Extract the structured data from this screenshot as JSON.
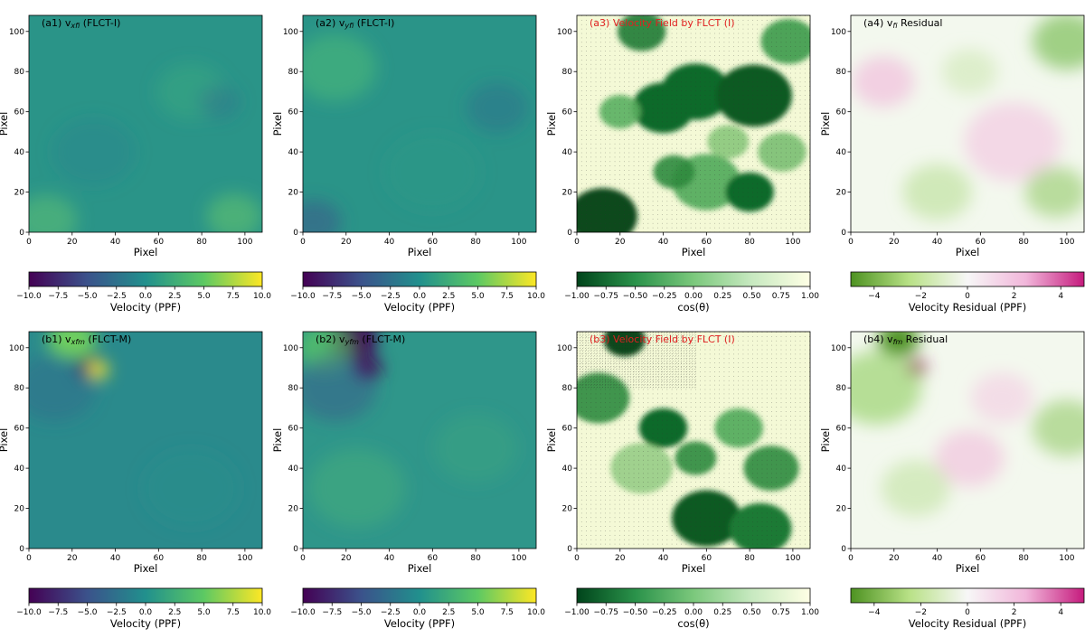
{
  "chart_data": [
    {
      "id": "a1",
      "type": "heatmap",
      "title_prefix": "(a1) v",
      "title_sub": "xfi",
      "title_suffix": " (FLCT-I)",
      "title_color": "#000000",
      "xlabel": "Pixel",
      "ylabel": "Pixel",
      "xlim": [
        0,
        108
      ],
      "ylim": [
        0,
        108
      ],
      "xticks": [
        0,
        20,
        40,
        60,
        80,
        100
      ],
      "yticks": [
        0,
        20,
        40,
        60,
        80,
        100
      ],
      "colormap": "viridis",
      "base_color": "#2a9488",
      "features": [
        {
          "x": 8,
          "y": 6,
          "r": 9,
          "color": "#5fc173",
          "opacity": 0.55
        },
        {
          "x": 95,
          "y": 8,
          "r": 8,
          "color": "#6ccc6a",
          "opacity": 0.5
        },
        {
          "x": 75,
          "y": 70,
          "r": 10,
          "color": "#3fb07c",
          "opacity": 0.4
        },
        {
          "x": 88,
          "y": 65,
          "r": 6,
          "color": "#2f6b8e",
          "opacity": 0.4
        },
        {
          "x": 30,
          "y": 40,
          "r": 12,
          "color": "#2c7d8e",
          "opacity": 0.35
        }
      ],
      "colorbar": {
        "ticks": [
          "−10.0",
          "−7.5",
          "−5.0",
          "−2.5",
          "0.0",
          "2.5",
          "5.0",
          "7.5",
          "10.0"
        ],
        "label": "Velocity (PPF)",
        "range": [
          -10,
          10
        ],
        "colors": [
          "#440154",
          "#3b528b",
          "#21908d",
          "#5dc963",
          "#fde725"
        ]
      }
    },
    {
      "id": "a2",
      "type": "heatmap",
      "title_prefix": "(a2) v",
      "title_sub": "yfi",
      "title_suffix": " (FLCT-I)",
      "title_color": "#000000",
      "xlabel": "Pixel",
      "ylabel": "Pixel",
      "xlim": [
        0,
        108
      ],
      "ylim": [
        0,
        108
      ],
      "xticks": [
        0,
        20,
        40,
        60,
        80,
        100
      ],
      "yticks": [
        0,
        20,
        40,
        60,
        80,
        100
      ],
      "colormap": "viridis",
      "base_color": "#2a9488",
      "features": [
        {
          "x": 5,
          "y": 5,
          "r": 8,
          "color": "#3b528b",
          "opacity": 0.5
        },
        {
          "x": 15,
          "y": 82,
          "r": 12,
          "color": "#4fbf75",
          "opacity": 0.5
        },
        {
          "x": 90,
          "y": 62,
          "r": 9,
          "color": "#2f6b8e",
          "opacity": 0.45
        },
        {
          "x": 60,
          "y": 30,
          "r": 14,
          "color": "#2f9a84",
          "opacity": 0.3
        }
      ],
      "colorbar": {
        "ticks": [
          "−10.0",
          "−7.5",
          "−5.0",
          "−2.5",
          "0.0",
          "2.5",
          "5.0",
          "7.5",
          "10.0"
        ],
        "label": "Velocity (PPF)",
        "range": [
          -10,
          10
        ],
        "colors": [
          "#440154",
          "#3b528b",
          "#21908d",
          "#5dc963",
          "#fde725"
        ]
      }
    },
    {
      "id": "a3",
      "type": "heatmap",
      "title_prefix": "(a3) Velocity Field by FLCT (I)",
      "title_sub": "",
      "title_suffix": "",
      "title_color": "#e02020",
      "xlabel": "Pixel",
      "ylabel": "Pixel",
      "xlim": [
        0,
        108
      ],
      "ylim": [
        0,
        108
      ],
      "xticks": [
        0,
        20,
        40,
        60,
        80,
        100
      ],
      "yticks": [
        0,
        20,
        40,
        60,
        80,
        100
      ],
      "colormap": "Greens_r",
      "base_color": "#f4f9d6",
      "quiver": true,
      "features": [
        {
          "x": 12,
          "y": 8,
          "r": 10,
          "color": "#0a4a1c",
          "opacity": 1
        },
        {
          "x": 40,
          "y": 62,
          "r": 9,
          "color": "#0f6b2a",
          "opacity": 1
        },
        {
          "x": 55,
          "y": 70,
          "r": 10,
          "color": "#0f6b2a",
          "opacity": 1
        },
        {
          "x": 82,
          "y": 68,
          "r": 11,
          "color": "#0a5a22",
          "opacity": 1
        },
        {
          "x": 98,
          "y": 95,
          "r": 8,
          "color": "#3c9a4a",
          "opacity": 0.9
        },
        {
          "x": 20,
          "y": 60,
          "r": 6,
          "color": "#5aaf5f",
          "opacity": 0.9
        },
        {
          "x": 60,
          "y": 25,
          "r": 10,
          "color": "#4fa85a",
          "opacity": 0.9
        },
        {
          "x": 80,
          "y": 20,
          "r": 7,
          "color": "#0f6b2a",
          "opacity": 1
        },
        {
          "x": 45,
          "y": 30,
          "r": 6,
          "color": "#2e8b3e",
          "opacity": 0.9
        },
        {
          "x": 30,
          "y": 100,
          "r": 7,
          "color": "#1e7a34",
          "opacity": 0.9
        },
        {
          "x": 70,
          "y": 45,
          "r": 6,
          "color": "#7cc070",
          "opacity": 0.8
        },
        {
          "x": 95,
          "y": 40,
          "r": 7,
          "color": "#6ab866",
          "opacity": 0.8
        }
      ],
      "colorbar": {
        "ticks": [
          "−1.00",
          "−0.75",
          "−0.50",
          "−0.25",
          "0.00",
          "0.25",
          "0.50",
          "0.75",
          "1.00"
        ],
        "label": "cos(θ)",
        "range": [
          -1,
          1
        ],
        "colors": [
          "#00441b",
          "#2a924a",
          "#7bc87c",
          "#c7e9c0",
          "#ffffe5"
        ]
      }
    },
    {
      "id": "a4",
      "type": "heatmap",
      "title_prefix": "(a4) v",
      "title_sub": "fi",
      "title_suffix": " Residual",
      "title_color": "#000000",
      "xlabel": "Pixel",
      "ylabel": "Pixel",
      "xlim": [
        0,
        108
      ],
      "ylim": [
        0,
        108
      ],
      "xticks": [
        0,
        20,
        40,
        60,
        80,
        100
      ],
      "yticks": [
        0,
        20,
        40,
        60,
        80,
        100
      ],
      "colormap": "PiYG_r",
      "base_color": "#f3f8ee",
      "features": [
        {
          "x": 100,
          "y": 95,
          "r": 10,
          "color": "#8cc56a",
          "opacity": 0.8
        },
        {
          "x": 15,
          "y": 75,
          "r": 9,
          "color": "#f1c6df",
          "opacity": 0.8
        },
        {
          "x": 75,
          "y": 45,
          "r": 14,
          "color": "#f3cbe2",
          "opacity": 0.7
        },
        {
          "x": 40,
          "y": 20,
          "r": 10,
          "color": "#c2e3a2",
          "opacity": 0.7
        },
        {
          "x": 95,
          "y": 20,
          "r": 9,
          "color": "#9fd07a",
          "opacity": 0.7
        },
        {
          "x": 55,
          "y": 80,
          "r": 8,
          "color": "#cfe8b4",
          "opacity": 0.6
        }
      ],
      "colorbar": {
        "ticks": [
          "−4",
          "−2",
          "0",
          "2",
          "4"
        ],
        "tick_values": [
          -4,
          -2,
          0,
          2,
          4
        ],
        "label": "Velocity Residual (PPF)",
        "range": [
          -5,
          5
        ],
        "colors": [
          "#4d9221",
          "#b8e186",
          "#f7f7f7",
          "#f1b6da",
          "#c51b7d"
        ]
      }
    },
    {
      "id": "b1",
      "type": "heatmap",
      "title_prefix": "(b1) v",
      "title_sub": "xfm",
      "title_suffix": " (FLCT-M)",
      "title_color": "#000000",
      "xlabel": "Pixel",
      "ylabel": "Pixel",
      "xlim": [
        0,
        108
      ],
      "ylim": [
        0,
        108
      ],
      "xticks": [
        0,
        20,
        40,
        60,
        80,
        100
      ],
      "yticks": [
        0,
        20,
        40,
        60,
        80,
        100
      ],
      "colormap": "viridis",
      "base_color": "#2a8a8c",
      "features": [
        {
          "x": 20,
          "y": 104,
          "r": 7,
          "color": "#6fcf5f",
          "opacity": 1
        },
        {
          "x": 28,
          "y": 90,
          "r": 4,
          "color": "#440154",
          "opacity": 1
        },
        {
          "x": 32,
          "y": 89,
          "r": 3,
          "color": "#fde725",
          "opacity": 1
        },
        {
          "x": 12,
          "y": 80,
          "r": 12,
          "color": "#2f6b8e",
          "opacity": 0.5
        },
        {
          "x": 75,
          "y": 30,
          "r": 14,
          "color": "#2b8e8a",
          "opacity": 0.4
        }
      ],
      "colorbar": {
        "ticks": [
          "−10.0",
          "−7.5",
          "−5.0",
          "−2.5",
          "0.0",
          "2.5",
          "5.0",
          "7.5",
          "10.0"
        ],
        "label": "Velocity (PPF)",
        "range": [
          -10,
          10
        ],
        "colors": [
          "#440154",
          "#3b528b",
          "#21908d",
          "#5dc963",
          "#fde725"
        ]
      }
    },
    {
      "id": "b2",
      "type": "heatmap",
      "title_prefix": "(b2) v",
      "title_sub": "yfm",
      "title_suffix": " (FLCT-M)",
      "title_color": "#000000",
      "xlabel": "Pixel",
      "ylabel": "Pixel",
      "xlim": [
        0,
        108
      ],
      "ylim": [
        0,
        108
      ],
      "xticks": [
        0,
        20,
        40,
        60,
        80,
        100
      ],
      "yticks": [
        0,
        20,
        40,
        60,
        80,
        100
      ],
      "colormap": "viridis",
      "base_color": "#2f968a",
      "features": [
        {
          "x": 23,
          "y": 104,
          "r": 7,
          "color": "#440154",
          "opacity": 1
        },
        {
          "x": 30,
          "y": 90,
          "r": 4,
          "color": "#440154",
          "opacity": 1
        },
        {
          "x": 10,
          "y": 100,
          "r": 8,
          "color": "#5dc963",
          "opacity": 0.7
        },
        {
          "x": 15,
          "y": 80,
          "r": 12,
          "color": "#3b528b",
          "opacity": 0.45
        },
        {
          "x": 25,
          "y": 30,
          "r": 14,
          "color": "#46b07a",
          "opacity": 0.5
        },
        {
          "x": 80,
          "y": 50,
          "r": 12,
          "color": "#3fa87e",
          "opacity": 0.4
        }
      ],
      "colorbar": {
        "ticks": [
          "−10.0",
          "−7.5",
          "−5.0",
          "−2.5",
          "0.0",
          "2.5",
          "5.0",
          "7.5",
          "10.0"
        ],
        "label": "Velocity (PPF)",
        "range": [
          -10,
          10
        ],
        "colors": [
          "#440154",
          "#3b528b",
          "#21908d",
          "#5dc963",
          "#fde725"
        ]
      }
    },
    {
      "id": "b3",
      "type": "heatmap",
      "title_prefix": "(b3) Velocity Field by FLCT (I)",
      "title_sub": "",
      "title_suffix": "",
      "title_color": "#e02020",
      "xlabel": "Pixel",
      "ylabel": "Pixel",
      "xlim": [
        0,
        108
      ],
      "ylim": [
        0,
        108
      ],
      "xticks": [
        0,
        20,
        40,
        60,
        80,
        100
      ],
      "yticks": [
        0,
        20,
        40,
        60,
        80,
        100
      ],
      "colormap": "Greens_r",
      "base_color": "#f4f9d6",
      "quiver": true,
      "dense_region": {
        "x": 0,
        "y": 80,
        "w": 55,
        "h": 28
      },
      "features": [
        {
          "x": 22,
          "y": 104,
          "r": 6,
          "color": "#0a4a1c",
          "opacity": 1
        },
        {
          "x": 10,
          "y": 75,
          "r": 9,
          "color": "#2e8b3e",
          "opacity": 0.9
        },
        {
          "x": 40,
          "y": 60,
          "r": 7,
          "color": "#0f6b2a",
          "opacity": 1
        },
        {
          "x": 60,
          "y": 15,
          "r": 10,
          "color": "#0a5a22",
          "opacity": 1
        },
        {
          "x": 85,
          "y": 10,
          "r": 9,
          "color": "#1e7a34",
          "opacity": 1
        },
        {
          "x": 90,
          "y": 40,
          "r": 8,
          "color": "#2e8b3e",
          "opacity": 0.9
        },
        {
          "x": 75,
          "y": 60,
          "r": 7,
          "color": "#4fa85a",
          "opacity": 0.9
        },
        {
          "x": 30,
          "y": 40,
          "r": 9,
          "color": "#7cc070",
          "opacity": 0.7
        },
        {
          "x": 55,
          "y": 45,
          "r": 6,
          "color": "#2e8b3e",
          "opacity": 0.9
        }
      ],
      "colorbar": {
        "ticks": [
          "−1.00",
          "−0.75",
          "−0.50",
          "−0.25",
          "0.00",
          "0.25",
          "0.50",
          "0.75",
          "1.00"
        ],
        "label": "cos(θ)",
        "range": [
          -1,
          1
        ],
        "colors": [
          "#00441b",
          "#2a924a",
          "#7bc87c",
          "#c7e9c0",
          "#ffffe5"
        ]
      }
    },
    {
      "id": "b4",
      "type": "heatmap",
      "title_prefix": "(b4) v",
      "title_sub": "fm",
      "title_suffix": " Residual",
      "title_color": "#000000",
      "xlabel": "Pixel",
      "ylabel": "Pixel",
      "xlim": [
        0,
        108
      ],
      "ylim": [
        0,
        108
      ],
      "xticks": [
        0,
        20,
        40,
        60,
        80,
        100
      ],
      "yticks": [
        0,
        20,
        40,
        60,
        80,
        100
      ],
      "colormap": "PiYG_r",
      "base_color": "#f3f8ee",
      "features": [
        {
          "x": 22,
          "y": 104,
          "r": 6,
          "color": "#4d9221",
          "opacity": 1
        },
        {
          "x": 30,
          "y": 90,
          "r": 3,
          "color": "#8e0152",
          "opacity": 1
        },
        {
          "x": 12,
          "y": 80,
          "r": 13,
          "color": "#a6d87f",
          "opacity": 0.8
        },
        {
          "x": 55,
          "y": 45,
          "r": 10,
          "color": "#f2c4de",
          "opacity": 0.7
        },
        {
          "x": 70,
          "y": 75,
          "r": 9,
          "color": "#f3cbe2",
          "opacity": 0.6
        },
        {
          "x": 100,
          "y": 60,
          "r": 10,
          "color": "#9fd07a",
          "opacity": 0.7
        },
        {
          "x": 30,
          "y": 30,
          "r": 10,
          "color": "#c2e3a2",
          "opacity": 0.6
        }
      ],
      "colorbar": {
        "ticks": [
          "−4",
          "−2",
          "0",
          "2",
          "4"
        ],
        "tick_values": [
          -4,
          -2,
          0,
          2,
          4
        ],
        "label": "Velocity Residual (PPF)",
        "range": [
          -5,
          5
        ],
        "colors": [
          "#4d9221",
          "#b8e186",
          "#f7f7f7",
          "#f1b6da",
          "#c51b7d"
        ]
      }
    }
  ]
}
